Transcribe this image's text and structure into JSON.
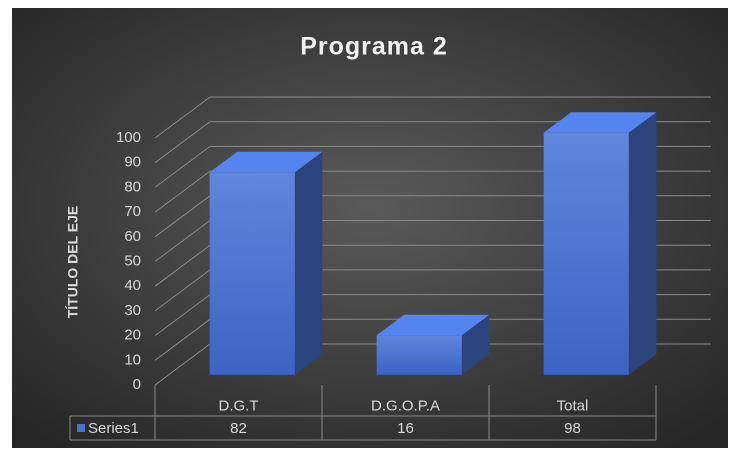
{
  "chart_data": {
    "type": "bar3d",
    "title": "Programa 2",
    "y_label": "TÍTULO DEL EJE",
    "categories": [
      "D.G.T",
      "D.G.O.P.A",
      "Total"
    ],
    "series": [
      {
        "name": "Series1",
        "color": "#4a72d0",
        "values": [
          82,
          16,
          98
        ]
      }
    ],
    "ylim": [
      0,
      100
    ],
    "yticks": [
      0,
      10,
      20,
      30,
      40,
      50,
      60,
      70,
      80,
      90,
      100
    ],
    "grid": true,
    "data_table": true
  }
}
